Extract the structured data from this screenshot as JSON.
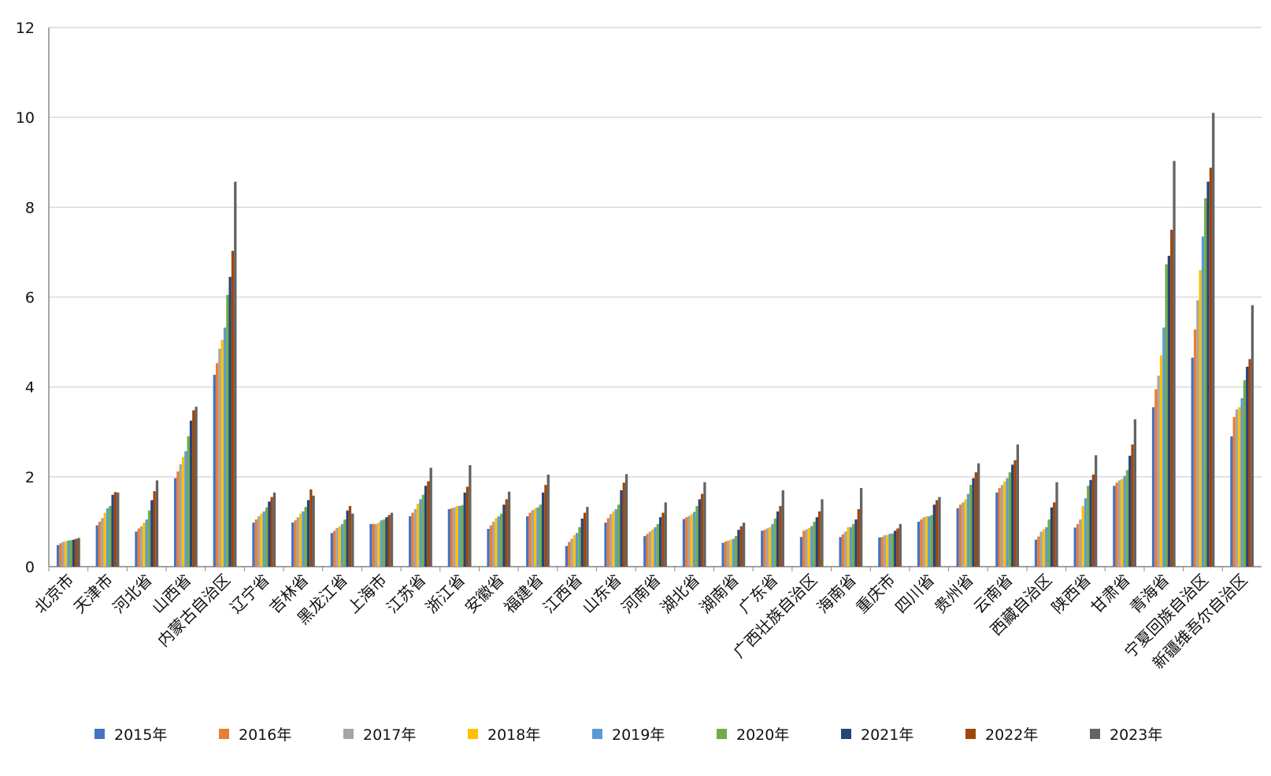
{
  "chart_data": {
    "type": "bar",
    "categories": [
      "北京市",
      "天津市",
      "河北省",
      "山西省",
      "内蒙古自治区",
      "辽宁省",
      "吉林省",
      "黑龙江省",
      "上海市",
      "江苏省",
      "浙江省",
      "安徽省",
      "福建省",
      "江西省",
      "山东省",
      "河南省",
      "湖北省",
      "湖南省",
      "广东省",
      "广西壮族自治区",
      "海南省",
      "重庆市",
      "四川省",
      "贵州省",
      "云南省",
      "西藏自治区",
      "陕西省",
      "甘肃省",
      "青海省",
      "宁夏回族自治区",
      "新疆维吾尔自治区"
    ],
    "ylim": [
      0,
      12
    ],
    "yticks": [
      0,
      2,
      4,
      6,
      8,
      10,
      12
    ],
    "grid": true,
    "series": [
      {
        "name": "2015年",
        "color": "#4472c4",
        "values": [
          0.48,
          0.92,
          0.78,
          1.97,
          4.27,
          0.98,
          0.98,
          0.75,
          0.95,
          1.12,
          1.28,
          0.84,
          1.12,
          0.46,
          0.98,
          0.68,
          1.06,
          0.53,
          0.8,
          0.66,
          0.66,
          0.65,
          1.0,
          1.3,
          1.65,
          0.6,
          0.87,
          1.8,
          3.55,
          4.65,
          2.9
        ]
      },
      {
        "name": "2016年",
        "color": "#ed7d31",
        "values": [
          0.52,
          1.0,
          0.85,
          2.12,
          4.53,
          1.05,
          1.03,
          0.8,
          0.95,
          1.2,
          1.3,
          0.92,
          1.2,
          0.55,
          1.08,
          0.73,
          1.1,
          0.56,
          0.82,
          0.8,
          0.72,
          0.66,
          1.05,
          1.38,
          1.75,
          0.67,
          0.95,
          1.87,
          3.95,
          5.28,
          3.33
        ]
      },
      {
        "name": "2017年",
        "color": "#a5a5a5",
        "values": [
          0.55,
          1.08,
          0.9,
          2.28,
          4.85,
          1.12,
          1.1,
          0.86,
          0.95,
          1.28,
          1.32,
          1.0,
          1.26,
          0.62,
          1.17,
          0.78,
          1.13,
          0.58,
          0.85,
          0.83,
          0.78,
          0.7,
          1.1,
          1.43,
          1.82,
          0.78,
          1.05,
          1.92,
          4.25,
          5.93,
          3.5
        ]
      },
      {
        "name": "2018年",
        "color": "#ffc000",
        "values": [
          0.57,
          1.2,
          0.98,
          2.44,
          5.05,
          1.18,
          1.18,
          0.9,
          0.98,
          1.4,
          1.35,
          1.08,
          1.3,
          0.7,
          1.23,
          0.83,
          1.17,
          0.6,
          0.88,
          0.86,
          0.88,
          0.71,
          1.12,
          1.5,
          1.9,
          0.83,
          1.35,
          1.95,
          4.7,
          6.6,
          3.55
        ]
      },
      {
        "name": "2019年",
        "color": "#5b9bd5",
        "values": [
          0.58,
          1.3,
          1.05,
          2.57,
          5.32,
          1.23,
          1.23,
          0.95,
          1.03,
          1.5,
          1.35,
          1.12,
          1.32,
          0.75,
          1.28,
          0.88,
          1.22,
          0.62,
          0.95,
          0.9,
          0.88,
          0.73,
          1.12,
          1.62,
          1.97,
          0.88,
          1.52,
          2.02,
          5.32,
          7.35,
          3.75
        ]
      },
      {
        "name": "2020年",
        "color": "#70ad47",
        "values": [
          0.59,
          1.35,
          1.25,
          2.9,
          6.05,
          1.32,
          1.33,
          1.05,
          1.05,
          1.6,
          1.37,
          1.18,
          1.38,
          0.88,
          1.38,
          0.95,
          1.35,
          0.68,
          1.07,
          1.0,
          0.95,
          0.74,
          1.15,
          1.82,
          2.1,
          1.05,
          1.8,
          2.15,
          6.73,
          8.2,
          4.15
        ]
      },
      {
        "name": "2021年",
        "color": "#264478",
        "values": [
          0.6,
          1.6,
          1.48,
          3.25,
          6.45,
          1.45,
          1.48,
          1.25,
          1.1,
          1.8,
          1.65,
          1.38,
          1.65,
          1.07,
          1.7,
          1.1,
          1.5,
          0.82,
          1.23,
          1.1,
          1.05,
          0.8,
          1.38,
          1.97,
          2.27,
          1.32,
          1.93,
          2.47,
          6.92,
          8.57,
          4.45
        ]
      },
      {
        "name": "2022年",
        "color": "#9e480e",
        "values": [
          0.62,
          1.66,
          1.68,
          3.48,
          7.03,
          1.55,
          1.72,
          1.35,
          1.15,
          1.9,
          1.78,
          1.5,
          1.82,
          1.2,
          1.87,
          1.2,
          1.62,
          0.9,
          1.35,
          1.23,
          1.28,
          0.85,
          1.48,
          2.1,
          2.37,
          1.43,
          2.05,
          2.72,
          7.5,
          8.88,
          4.62
        ]
      },
      {
        "name": "2023年",
        "color": "#636363",
        "values": [
          0.64,
          1.65,
          1.92,
          3.56,
          8.57,
          1.65,
          1.58,
          1.18,
          1.2,
          2.2,
          2.26,
          1.67,
          2.05,
          1.33,
          2.06,
          1.43,
          1.88,
          0.98,
          1.7,
          1.5,
          1.75,
          0.95,
          1.55,
          2.3,
          2.72,
          1.88,
          2.48,
          3.28,
          9.03,
          10.1,
          5.82
        ]
      }
    ]
  }
}
